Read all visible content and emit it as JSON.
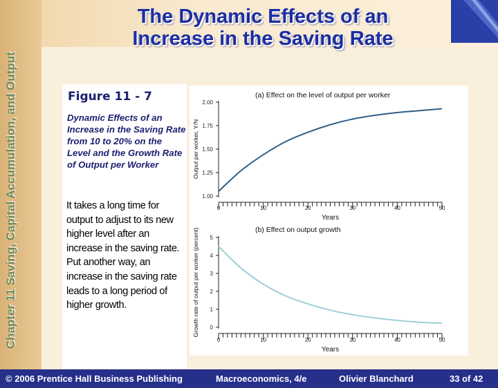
{
  "slide": {
    "title_line1": "The Dynamic Effects of an",
    "title_line2": "Increase in the Saving Rate",
    "side_text": "Chapter 11 Saving, Capital Accumulation, and Output",
    "figure_label": "Figure 11 - 7",
    "figure_caption": "Dynamic Effects of an Increase in the Saving Rate from 10 to 20% on the Level and the Growth Rate of Output per Worker",
    "body_text": "It takes a long time for output to adjust to its new higher level after an increase in the saving rate.  Put another way, an increase in the saving rate leads to a long period of higher growth."
  },
  "footer": {
    "copyright": "© 2006 Prentice Hall Business Publishing",
    "book": "Macroeconomics, 4/e",
    "author": "Olivier Blanchard",
    "page": "33 of 42"
  },
  "colors": {
    "title": "#1c2ea0",
    "footer_bg": "#262f8a",
    "line_a": "#2f5f86",
    "line_b": "#9ccfd8"
  },
  "chart_data": [
    {
      "type": "line",
      "title": "(a) Effect on the level of output per worker",
      "xlabel": "Years",
      "ylabel": "Output per worker, Y/N",
      "xlim": [
        0,
        50
      ],
      "ylim": [
        1.0,
        2.0
      ],
      "xticks": [
        0,
        10,
        20,
        30,
        40,
        50
      ],
      "yticks": [
        1.0,
        1.25,
        1.5,
        1.75,
        2.0
      ],
      "ytick_labels": [
        "1.00",
        "1.25",
        "1.50",
        "1.75",
        "2.00"
      ],
      "x": [
        0,
        5,
        10,
        15,
        20,
        25,
        30,
        35,
        40,
        45,
        50
      ],
      "series": [
        {
          "values": [
            1.05,
            1.27,
            1.44,
            1.58,
            1.68,
            1.76,
            1.82,
            1.86,
            1.89,
            1.91,
            1.93
          ]
        }
      ]
    },
    {
      "type": "line",
      "title": "(b) Effect on output growth",
      "xlabel": "Years",
      "ylabel": "Growth rate of output per worker (percent)",
      "xlim": [
        0,
        50
      ],
      "ylim": [
        0,
        5
      ],
      "xticks": [
        0,
        10,
        20,
        30,
        40,
        50
      ],
      "yticks": [
        0,
        1,
        2,
        3,
        4,
        5
      ],
      "ytick_labels": [
        "0",
        "1",
        "2",
        "3",
        "4",
        "5"
      ],
      "x": [
        0,
        5,
        10,
        15,
        20,
        25,
        30,
        35,
        40,
        45,
        50
      ],
      "series": [
        {
          "values": [
            4.5,
            3.3,
            2.4,
            1.75,
            1.3,
            0.95,
            0.7,
            0.52,
            0.38,
            0.28,
            0.22
          ]
        }
      ]
    }
  ]
}
